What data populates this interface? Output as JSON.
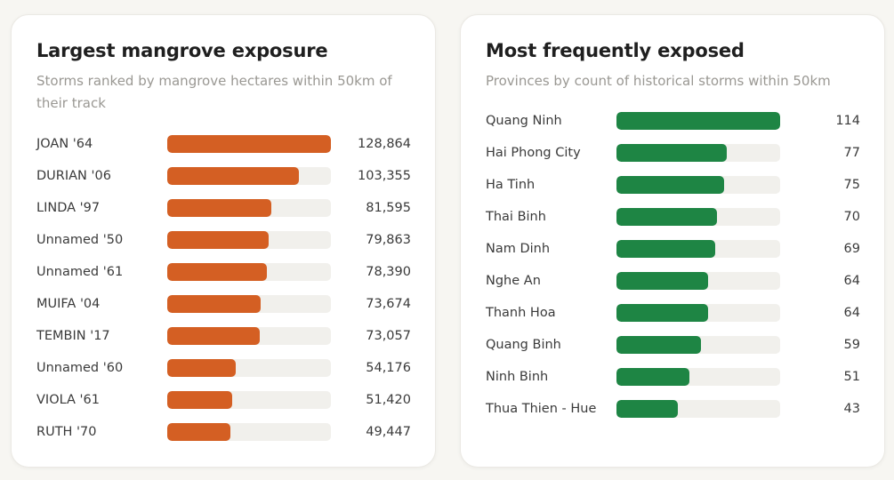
{
  "colors": {
    "left_bar": "#d45f23",
    "right_bar": "#1e8544",
    "track": "#f1f0ec"
  },
  "chart_data": [
    {
      "type": "bar",
      "orientation": "horizontal",
      "title": "Largest mangrove exposure",
      "subtitle": "Storms ranked by mangrove hectares within 50km of their track",
      "categories": [
        "JOAN '64",
        "DURIAN '06",
        "LINDA '97",
        "Unnamed '50",
        "Unnamed '61",
        "MUIFA '04",
        "TEMBIN '17",
        "Unnamed '60",
        "VIOLA '61",
        "RUTH '70"
      ],
      "values": [
        128864,
        103355,
        81595,
        79863,
        78390,
        73674,
        73057,
        54176,
        51420,
        49447
      ],
      "labels": [
        "128,864",
        "103,355",
        "81,595",
        "79,863",
        "78,390",
        "73,674",
        "73,057",
        "54,176",
        "51,420",
        "49,447"
      ],
      "xlim": [
        0,
        128864
      ]
    },
    {
      "type": "bar",
      "orientation": "horizontal",
      "title": "Most frequently exposed",
      "subtitle": "Provinces by count of historical storms within 50km",
      "categories": [
        "Quang Ninh",
        "Hai Phong City",
        "Ha Tinh",
        "Thai Binh",
        "Nam Dinh",
        "Nghe An",
        "Thanh Hoa",
        "Quang Binh",
        "Ninh Binh",
        "Thua Thien - Hue"
      ],
      "values": [
        114,
        77,
        75,
        70,
        69,
        64,
        64,
        59,
        51,
        43
      ],
      "labels": [
        "114",
        "77",
        "75",
        "70",
        "69",
        "64",
        "64",
        "59",
        "51",
        "43"
      ],
      "xlim": [
        0,
        114
      ]
    }
  ]
}
